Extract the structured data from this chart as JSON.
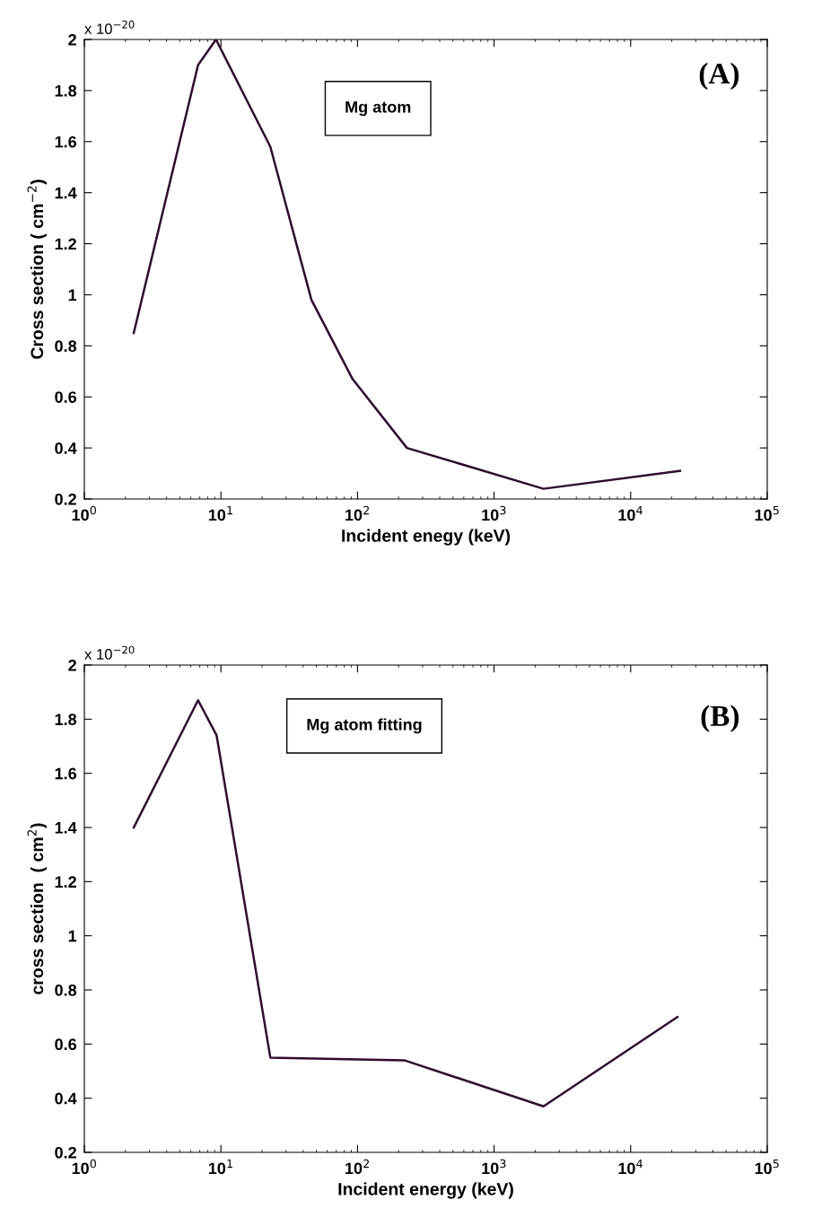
{
  "chart_data": [
    {
      "type": "line",
      "xlabel": "Incident enegy (keV)",
      "ylabel": "Cross section ( cm$^{−2}$)",
      "log": "x",
      "xlim": [
        1,
        100000
      ],
      "xticks": [
        {
          "value": 1,
          "label": "10$^{0}$"
        },
        {
          "value": 10,
          "label": "10$^{1}$"
        },
        {
          "value": 100,
          "label": "10$^{2}$"
        },
        {
          "value": 1000,
          "label": "10$^{3}$"
        },
        {
          "value": 10000,
          "label": "10$^{4}$"
        },
        {
          "value": 100000,
          "label": "10$^{5}$"
        }
      ],
      "ylim": [
        0.2,
        2
      ],
      "yticks": [
        0.2,
        0.4,
        0.6,
        0.8,
        1,
        1.2,
        1.4,
        1.6,
        1.8,
        2
      ],
      "grid": false,
      "legend": false,
      "x": [
        2.3,
        6.8,
        9.2,
        23,
        46,
        92,
        230,
        2300,
        23000
      ],
      "series": [
        {
          "color": "#300a30",
          "values": [
            0.85,
            1.9,
            2.0,
            1.58,
            0.98,
            0.67,
            0.4,
            0.24,
            0.31
          ]
        }
      ],
      "annotations": [
        "x 10$^{−20}$",
        "Mg atom",
        "(A)"
      ]
    },
    {
      "type": "line",
      "xlabel": "Incident energy (keV)",
      "ylabel": "cross section  ( cm$^{2}$)",
      "log": "x",
      "xlim": [
        1,
        100000
      ],
      "xticks": [
        {
          "value": 1,
          "label": "10$^{0}$"
        },
        {
          "value": 10,
          "label": "10$^{1}$"
        },
        {
          "value": 100,
          "label": "10$^{2}$"
        },
        {
          "value": 1000,
          "label": "10$^{3}$"
        },
        {
          "value": 10000,
          "label": "10$^{4}$"
        },
        {
          "value": 100000,
          "label": "10$^{5}$"
        }
      ],
      "ylim": [
        0.2,
        2
      ],
      "yticks": [
        0.2,
        0.4,
        0.6,
        0.8,
        1,
        1.2,
        1.4,
        1.6,
        1.8,
        2
      ],
      "grid": false,
      "legend": false,
      "x": [
        2.3,
        6.8,
        9.3,
        23,
        220,
        2300,
        22000
      ],
      "series": [
        {
          "color": "#300a30",
          "values": [
            1.4,
            1.87,
            1.74,
            0.55,
            0.54,
            0.37,
            0.7
          ]
        }
      ],
      "annotations": [
        "x 10$^{−20}$",
        "Mg atom fitting",
        "(B)"
      ]
    }
  ]
}
